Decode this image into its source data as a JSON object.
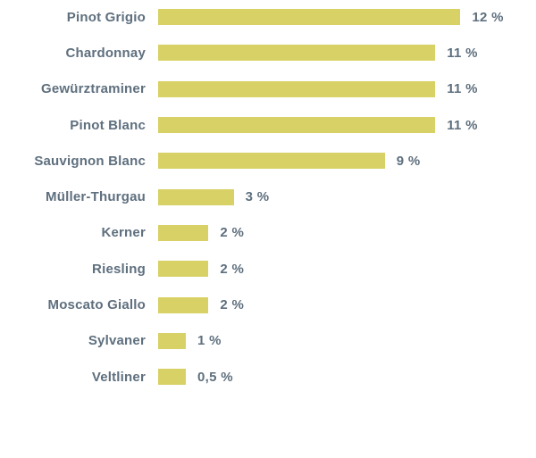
{
  "page": {
    "background_color": "#ffffff"
  },
  "chart_data": {
    "type": "bar",
    "orientation": "horizontal",
    "title": "",
    "xlabel": "",
    "ylabel": "",
    "xlim": [
      0,
      12.5
    ],
    "grid": false,
    "legend": false,
    "bar_color": "#d7d166",
    "label_color": "#5e6f7e",
    "categories": [
      "Pinot Grigio",
      "Chardonnay",
      "Gewürztraminer",
      "Pinot Blanc",
      "Sauvignon Blanc",
      "Müller-Thurgau",
      "Kerner",
      "Riesling",
      "Moscato Giallo",
      "Sylvaner",
      "Veltliner"
    ],
    "values": [
      12,
      11,
      11,
      11,
      9,
      3,
      2,
      2,
      2,
      1,
      0.5
    ],
    "value_labels": [
      "12 %",
      "11 %",
      "11 %",
      "11 %",
      "9 %",
      "3 %",
      "2 %",
      "2 %",
      "2 %",
      "1 %",
      "0,5 %"
    ]
  }
}
